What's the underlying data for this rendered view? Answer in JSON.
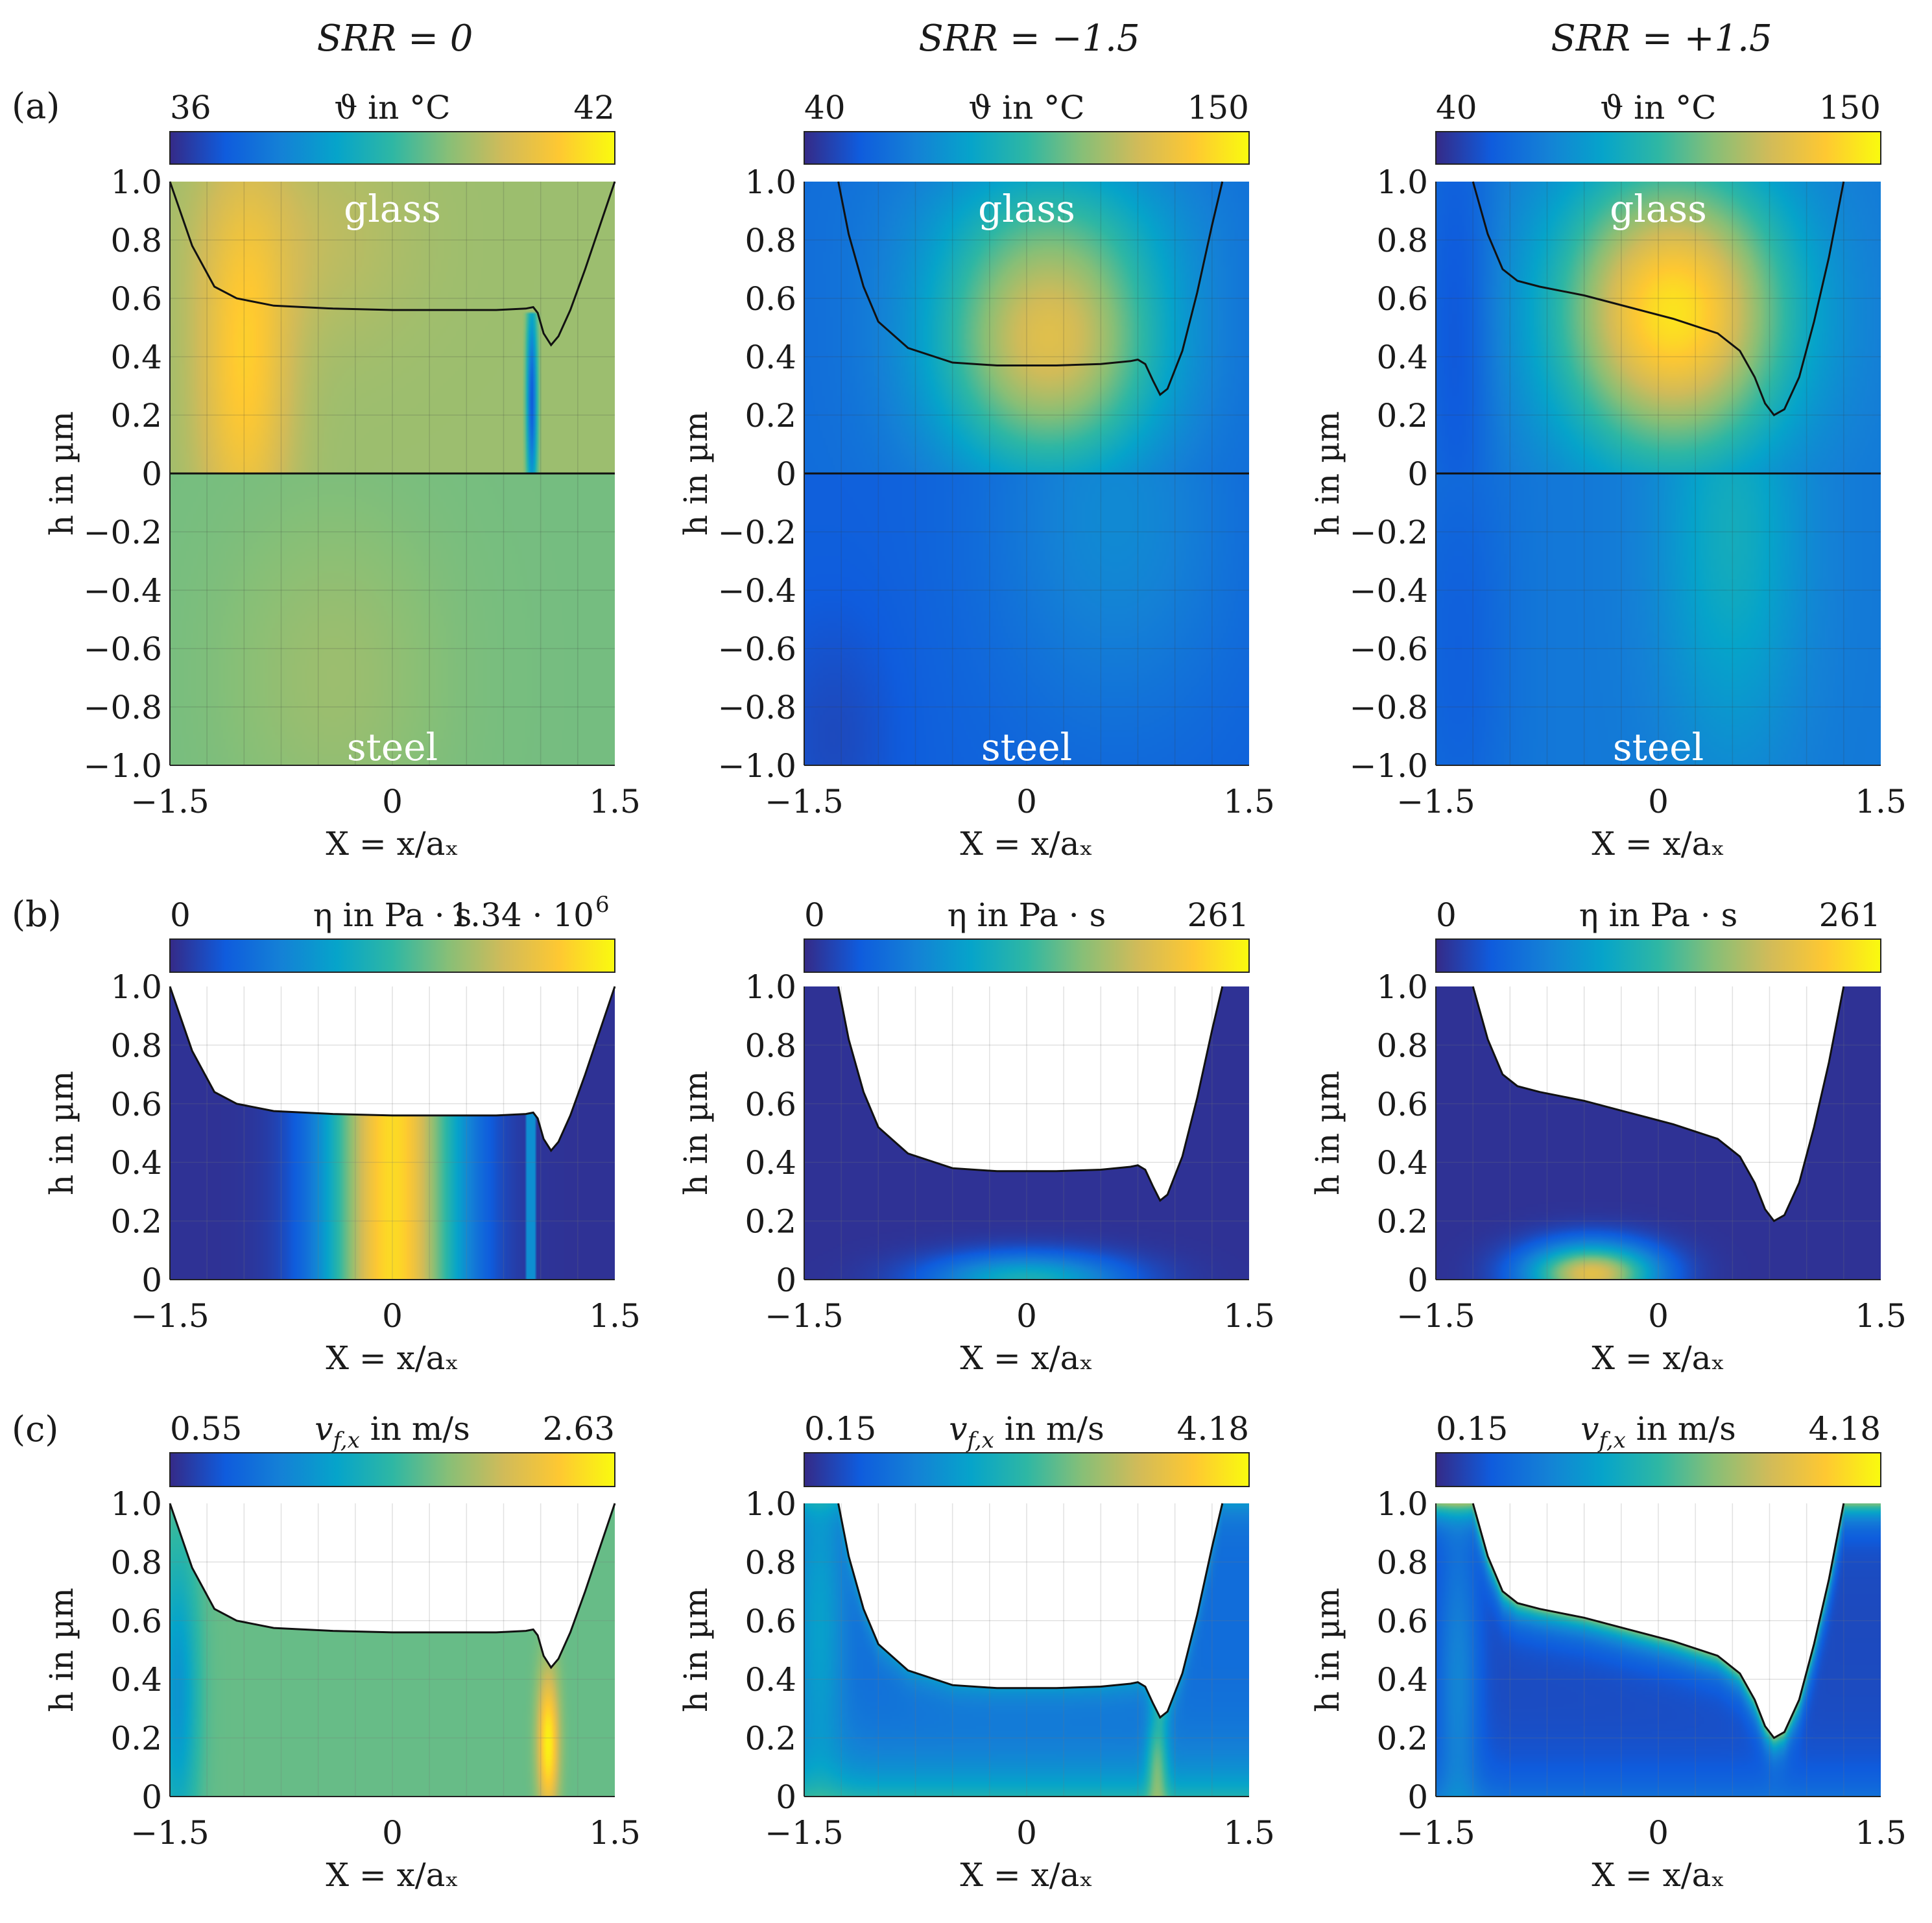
{
  "figure": {
    "column_titles": [
      "SRR = 0",
      "SRR = −1.5",
      "SRR = +1.5"
    ],
    "row_labels": [
      "(a)",
      "(b)",
      "(c)"
    ],
    "region_labels": {
      "top": "glass",
      "bottom": "steel"
    },
    "xlabel": "X = x/aₓ",
    "ylabel": "h in µm"
  },
  "colormap": {
    "name": "parula",
    "stops": [
      "#352a87",
      "#0f5cdd",
      "#1481d6",
      "#06a4ca",
      "#2eb7a4",
      "#87bf77",
      "#d1bb59",
      "#fec832",
      "#f9fb0e"
    ]
  },
  "chart_data": [
    {
      "type": "heatmap",
      "row": "a",
      "column": 1,
      "title": "SRR = 0",
      "colorbar": {
        "label": "ϑ in °C",
        "min": "36",
        "max": "42"
      },
      "x_ticks": [
        "−1.5",
        "0",
        "1.5"
      ],
      "y_ticks": [
        "1.0",
        "0.8",
        "0.6",
        "0.4",
        "0.2",
        "0",
        "−0.2",
        "−0.4",
        "−0.6",
        "−0.8",
        "−1.0"
      ],
      "xlim": [
        -1.5,
        1.5
      ],
      "ylim": [
        -1.0,
        1.0
      ],
      "field": "temperature",
      "film_profile": [
        [
          -1.5,
          1.0
        ],
        [
          -1.35,
          0.78
        ],
        [
          -1.2,
          0.64
        ],
        [
          -1.05,
          0.6
        ],
        [
          -0.8,
          0.575
        ],
        [
          -0.4,
          0.565
        ],
        [
          0,
          0.56
        ],
        [
          0.4,
          0.56
        ],
        [
          0.7,
          0.56
        ],
        [
          0.9,
          0.565
        ],
        [
          0.95,
          0.57
        ],
        [
          0.98,
          0.55
        ],
        [
          1.02,
          0.48
        ],
        [
          1.07,
          0.44
        ],
        [
          1.12,
          0.47
        ],
        [
          1.2,
          0.56
        ],
        [
          1.3,
          0.7
        ],
        [
          1.42,
          0.88
        ],
        [
          1.5,
          1.0
        ]
      ]
    },
    {
      "type": "heatmap",
      "row": "a",
      "column": 2,
      "title": "SRR = −1.5",
      "colorbar": {
        "label": "ϑ in °C",
        "min": "40",
        "max": "150"
      },
      "x_ticks": [
        "−1.5",
        "0",
        "1.5"
      ],
      "y_ticks": [
        "1.0",
        "0.8",
        "0.6",
        "0.4",
        "0.2",
        "0",
        "−0.2",
        "−0.4",
        "−0.6",
        "−0.8",
        "−1.0"
      ],
      "xlim": [
        -1.5,
        1.5
      ],
      "ylim": [
        -1.0,
        1.0
      ],
      "field": "temperature",
      "film_profile": [
        [
          -1.27,
          1.0
        ],
        [
          -1.2,
          0.82
        ],
        [
          -1.1,
          0.64
        ],
        [
          -1.0,
          0.52
        ],
        [
          -0.8,
          0.43
        ],
        [
          -0.5,
          0.38
        ],
        [
          -0.2,
          0.37
        ],
        [
          0.2,
          0.37
        ],
        [
          0.5,
          0.375
        ],
        [
          0.7,
          0.385
        ],
        [
          0.75,
          0.39
        ],
        [
          0.8,
          0.375
        ],
        [
          0.85,
          0.32
        ],
        [
          0.9,
          0.27
        ],
        [
          0.95,
          0.29
        ],
        [
          1.05,
          0.42
        ],
        [
          1.15,
          0.62
        ],
        [
          1.25,
          0.85
        ],
        [
          1.32,
          1.0
        ]
      ]
    },
    {
      "type": "heatmap",
      "row": "a",
      "column": 3,
      "title": "SRR = +1.5",
      "colorbar": {
        "label": "ϑ in °C",
        "min": "40",
        "max": "150"
      },
      "x_ticks": [
        "−1.5",
        "0",
        "1.5"
      ],
      "y_ticks": [
        "1.0",
        "0.8",
        "0.6",
        "0.4",
        "0.2",
        "0",
        "−0.2",
        "−0.4",
        "−0.6",
        "−0.8",
        "−1.0"
      ],
      "xlim": [
        -1.5,
        1.5
      ],
      "ylim": [
        -1.0,
        1.0
      ],
      "field": "temperature",
      "film_profile": [
        [
          -1.25,
          1.0
        ],
        [
          -1.15,
          0.82
        ],
        [
          -1.05,
          0.7
        ],
        [
          -0.95,
          0.66
        ],
        [
          -0.8,
          0.64
        ],
        [
          -0.5,
          0.61
        ],
        [
          -0.2,
          0.57
        ],
        [
          0.1,
          0.53
        ],
        [
          0.4,
          0.48
        ],
        [
          0.55,
          0.42
        ],
        [
          0.65,
          0.33
        ],
        [
          0.72,
          0.24
        ],
        [
          0.78,
          0.2
        ],
        [
          0.85,
          0.22
        ],
        [
          0.95,
          0.33
        ],
        [
          1.05,
          0.52
        ],
        [
          1.15,
          0.74
        ],
        [
          1.25,
          1.0
        ]
      ]
    },
    {
      "type": "heatmap",
      "row": "b",
      "column": 1,
      "colorbar": {
        "label": "η in Pa · s",
        "min": "0",
        "max": "1.34 · 10",
        "max_exponent": "6"
      },
      "x_ticks": [
        "−1.5",
        "0",
        "1.5"
      ],
      "y_ticks": [
        "1.0",
        "0.8",
        "0.6",
        "0.4",
        "0.2",
        "0"
      ],
      "xlim": [
        -1.5,
        1.5
      ],
      "ylim": [
        0,
        1.0
      ],
      "field": "viscosity_col1",
      "film_profile": [
        [
          -1.5,
          1.0
        ],
        [
          -1.35,
          0.78
        ],
        [
          -1.2,
          0.64
        ],
        [
          -1.05,
          0.6
        ],
        [
          -0.8,
          0.575
        ],
        [
          -0.4,
          0.565
        ],
        [
          0,
          0.56
        ],
        [
          0.4,
          0.56
        ],
        [
          0.7,
          0.56
        ],
        [
          0.9,
          0.565
        ],
        [
          0.95,
          0.57
        ],
        [
          0.98,
          0.55
        ],
        [
          1.02,
          0.48
        ],
        [
          1.07,
          0.44
        ],
        [
          1.12,
          0.47
        ],
        [
          1.2,
          0.56
        ],
        [
          1.3,
          0.7
        ],
        [
          1.42,
          0.88
        ],
        [
          1.5,
          1.0
        ]
      ]
    },
    {
      "type": "heatmap",
      "row": "b",
      "column": 2,
      "colorbar": {
        "label": "η in Pa · s",
        "min": "0",
        "max": "261"
      },
      "x_ticks": [
        "−1.5",
        "0",
        "1.5"
      ],
      "y_ticks": [
        "1.0",
        "0.8",
        "0.6",
        "0.4",
        "0.2",
        "0"
      ],
      "xlim": [
        -1.5,
        1.5
      ],
      "ylim": [
        0,
        1.0
      ],
      "field": "viscosity_col2",
      "film_profile": [
        [
          -1.27,
          1.0
        ],
        [
          -1.2,
          0.82
        ],
        [
          -1.1,
          0.64
        ],
        [
          -1.0,
          0.52
        ],
        [
          -0.8,
          0.43
        ],
        [
          -0.5,
          0.38
        ],
        [
          -0.2,
          0.37
        ],
        [
          0.2,
          0.37
        ],
        [
          0.5,
          0.375
        ],
        [
          0.7,
          0.385
        ],
        [
          0.75,
          0.39
        ],
        [
          0.8,
          0.375
        ],
        [
          0.85,
          0.32
        ],
        [
          0.9,
          0.27
        ],
        [
          0.95,
          0.29
        ],
        [
          1.05,
          0.42
        ],
        [
          1.15,
          0.62
        ],
        [
          1.25,
          0.85
        ],
        [
          1.32,
          1.0
        ]
      ]
    },
    {
      "type": "heatmap",
      "row": "b",
      "column": 3,
      "colorbar": {
        "label": "η in Pa · s",
        "min": "0",
        "max": "261"
      },
      "x_ticks": [
        "−1.5",
        "0",
        "1.5"
      ],
      "y_ticks": [
        "1.0",
        "0.8",
        "0.6",
        "0.4",
        "0.2",
        "0"
      ],
      "xlim": [
        -1.5,
        1.5
      ],
      "ylim": [
        0,
        1.0
      ],
      "field": "viscosity_col3",
      "film_profile": [
        [
          -1.25,
          1.0
        ],
        [
          -1.15,
          0.82
        ],
        [
          -1.05,
          0.7
        ],
        [
          -0.95,
          0.66
        ],
        [
          -0.8,
          0.64
        ],
        [
          -0.5,
          0.61
        ],
        [
          -0.2,
          0.57
        ],
        [
          0.1,
          0.53
        ],
        [
          0.4,
          0.48
        ],
        [
          0.55,
          0.42
        ],
        [
          0.65,
          0.33
        ],
        [
          0.72,
          0.24
        ],
        [
          0.78,
          0.2
        ],
        [
          0.85,
          0.22
        ],
        [
          0.95,
          0.33
        ],
        [
          1.05,
          0.52
        ],
        [
          1.15,
          0.74
        ],
        [
          1.25,
          1.0
        ]
      ]
    },
    {
      "type": "heatmap",
      "row": "c",
      "column": 1,
      "colorbar": {
        "label_symbol": "v",
        "label_sub": "f,x",
        "label_unit": " in m/s",
        "min": "0.55",
        "max": "2.63"
      },
      "x_ticks": [
        "−1.5",
        "0",
        "1.5"
      ],
      "y_ticks": [
        "1.0",
        "0.8",
        "0.6",
        "0.4",
        "0.2",
        "0"
      ],
      "xlim": [
        -1.5,
        1.5
      ],
      "ylim": [
        0,
        1.0
      ],
      "field": "velocity_col1",
      "film_profile": [
        [
          -1.5,
          1.0
        ],
        [
          -1.35,
          0.78
        ],
        [
          -1.2,
          0.64
        ],
        [
          -1.05,
          0.6
        ],
        [
          -0.8,
          0.575
        ],
        [
          -0.4,
          0.565
        ],
        [
          0,
          0.56
        ],
        [
          0.4,
          0.56
        ],
        [
          0.7,
          0.56
        ],
        [
          0.9,
          0.565
        ],
        [
          0.95,
          0.57
        ],
        [
          0.98,
          0.55
        ],
        [
          1.02,
          0.48
        ],
        [
          1.07,
          0.44
        ],
        [
          1.12,
          0.47
        ],
        [
          1.2,
          0.56
        ],
        [
          1.3,
          0.7
        ],
        [
          1.42,
          0.88
        ],
        [
          1.5,
          1.0
        ]
      ]
    },
    {
      "type": "heatmap",
      "row": "c",
      "column": 2,
      "colorbar": {
        "label_symbol": "v",
        "label_sub": "f,x",
        "label_unit": " in m/s",
        "min": "0.15",
        "max": "4.18"
      },
      "x_ticks": [
        "−1.5",
        "0",
        "1.5"
      ],
      "y_ticks": [
        "1.0",
        "0.8",
        "0.6",
        "0.4",
        "0.2",
        "0"
      ],
      "xlim": [
        -1.5,
        1.5
      ],
      "ylim": [
        0,
        1.0
      ],
      "field": "velocity_col2",
      "film_profile": [
        [
          -1.27,
          1.0
        ],
        [
          -1.2,
          0.82
        ],
        [
          -1.1,
          0.64
        ],
        [
          -1.0,
          0.52
        ],
        [
          -0.8,
          0.43
        ],
        [
          -0.5,
          0.38
        ],
        [
          -0.2,
          0.37
        ],
        [
          0.2,
          0.37
        ],
        [
          0.5,
          0.375
        ],
        [
          0.7,
          0.385
        ],
        [
          0.75,
          0.39
        ],
        [
          0.8,
          0.375
        ],
        [
          0.85,
          0.32
        ],
        [
          0.9,
          0.27
        ],
        [
          0.95,
          0.29
        ],
        [
          1.05,
          0.42
        ],
        [
          1.15,
          0.62
        ],
        [
          1.25,
          0.85
        ],
        [
          1.32,
          1.0
        ]
      ]
    },
    {
      "type": "heatmap",
      "row": "c",
      "column": 3,
      "colorbar": {
        "label_symbol": "v",
        "label_sub": "f,x",
        "label_unit": " in m/s",
        "min": "0.15",
        "max": "4.18"
      },
      "x_ticks": [
        "−1.5",
        "0",
        "1.5"
      ],
      "y_ticks": [
        "1.0",
        "0.8",
        "0.6",
        "0.4",
        "0.2",
        "0"
      ],
      "xlim": [
        -1.5,
        1.5
      ],
      "ylim": [
        0,
        1.0
      ],
      "field": "velocity_col3",
      "film_profile": [
        [
          -1.25,
          1.0
        ],
        [
          -1.15,
          0.82
        ],
        [
          -1.05,
          0.7
        ],
        [
          -0.95,
          0.66
        ],
        [
          -0.8,
          0.64
        ],
        [
          -0.5,
          0.61
        ],
        [
          -0.2,
          0.57
        ],
        [
          0.1,
          0.53
        ],
        [
          0.4,
          0.48
        ],
        [
          0.55,
          0.42
        ],
        [
          0.65,
          0.33
        ],
        [
          0.72,
          0.24
        ],
        [
          0.78,
          0.2
        ],
        [
          0.85,
          0.22
        ],
        [
          0.95,
          0.33
        ],
        [
          1.05,
          0.52
        ],
        [
          1.15,
          0.74
        ],
        [
          1.25,
          1.0
        ]
      ]
    }
  ]
}
